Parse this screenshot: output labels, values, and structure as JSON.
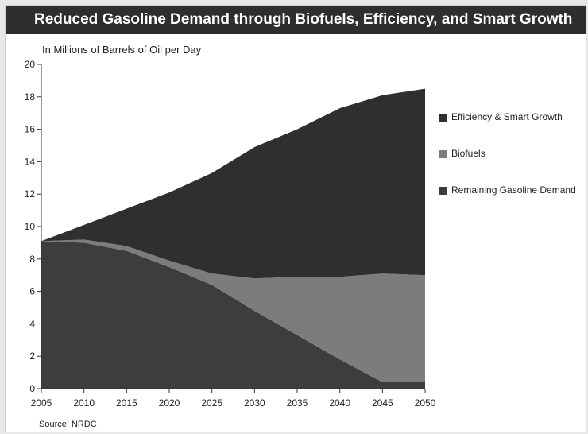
{
  "chart_data": {
    "type": "area",
    "title": "Reduced Gasoline Demand through Biofuels, Efficiency, and Smart Growth",
    "ylabel": "In Millions of Barrels of Oil per Day",
    "source": "Source: NRDC",
    "x": [
      2005,
      2010,
      2015,
      2020,
      2025,
      2030,
      2035,
      2040,
      2045,
      2050
    ],
    "ylim": [
      0,
      20
    ],
    "yticks": [
      0,
      2,
      4,
      6,
      8,
      10,
      12,
      14,
      16,
      18,
      20
    ],
    "stacked": true,
    "grid": false,
    "legend_position": "right",
    "series": [
      {
        "name": "Remaining Gasoline Demand",
        "color": "#3d3d3d",
        "values": [
          9.1,
          9.0,
          8.5,
          7.5,
          6.4,
          4.8,
          3.3,
          1.8,
          0.4,
          0.4
        ]
      },
      {
        "name": "Biofuels",
        "color": "#7c7c7c",
        "values": [
          0.0,
          0.2,
          0.3,
          0.4,
          0.7,
          2.0,
          3.6,
          5.1,
          6.7,
          6.6
        ]
      },
      {
        "name": "Efficiency & Smart Growth",
        "color": "#2f2f2f",
        "values": [
          0.0,
          0.9,
          2.3,
          4.2,
          6.2,
          8.1,
          9.1,
          10.4,
          11.0,
          11.5
        ]
      }
    ]
  }
}
